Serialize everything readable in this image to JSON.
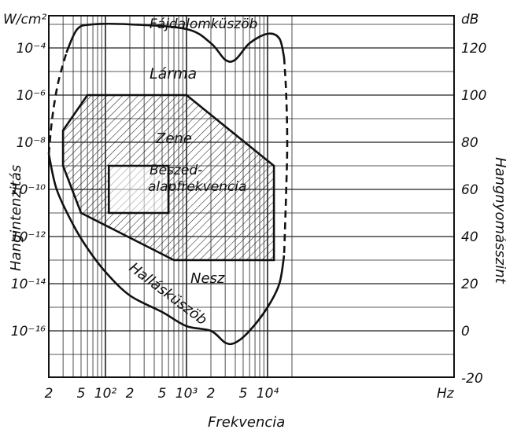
{
  "figure": {
    "left_axis_unit": "W/cm²",
    "right_axis_unit": "dB",
    "left_axis_title": "Hangintenzitás",
    "right_axis_title": "Hangnyomásszint",
    "x_axis_title": "Frekvencia",
    "x_unit": "Hz",
    "region_labels": {
      "pain_threshold": "Fájdalomküszöb",
      "noise": "Lárma",
      "music": "Zene",
      "speech_line1": "Beszéd-",
      "speech_line2": "alapfrekvencia",
      "quiet": "Nesz",
      "hearing_threshold": "Hallásküszöb"
    },
    "x_ticks": [
      {
        "label": "2",
        "hz": 20
      },
      {
        "label": "5",
        "hz": 50
      },
      {
        "label": "10²",
        "hz": 100
      },
      {
        "label": "2",
        "hz": 200
      },
      {
        "label": "5",
        "hz": 500
      },
      {
        "label": "10³",
        "hz": 1000
      },
      {
        "label": "2",
        "hz": 2000
      },
      {
        "label": "5",
        "hz": 5000
      },
      {
        "label": "10⁴",
        "hz": 10000
      }
    ],
    "left_ticks": [
      {
        "label": "10⁻⁴",
        "db": 120
      },
      {
        "label": "10⁻⁶",
        "db": 100
      },
      {
        "label": "10⁻⁸",
        "db": 80
      },
      {
        "label": "10⁻¹⁰",
        "db": 60
      },
      {
        "label": "10⁻¹²",
        "db": 40
      },
      {
        "label": "10⁻¹⁴",
        "db": 20
      },
      {
        "label": "10⁻¹⁶",
        "db": 0
      }
    ],
    "right_ticks": [
      {
        "label": "120",
        "db": 120
      },
      {
        "label": "100",
        "db": 100
      },
      {
        "label": "80",
        "db": 80
      },
      {
        "label": "60",
        "db": 60
      },
      {
        "label": "40",
        "db": 40
      },
      {
        "label": "20",
        "db": 20
      },
      {
        "label": "0",
        "db": 0
      },
      {
        "label": "-20",
        "db": -20
      }
    ],
    "curves": {
      "pain_threshold": [
        [
          33,
          118
        ],
        [
          45,
          128
        ],
        [
          70,
          130
        ],
        [
          200,
          130
        ],
        [
          1000,
          128
        ],
        [
          2000,
          122
        ],
        [
          3000,
          115
        ],
        [
          4000,
          115
        ],
        [
          6000,
          122
        ],
        [
          10000,
          126
        ],
        [
          14000,
          124
        ],
        [
          16000,
          116
        ]
      ],
      "hearing_threshold": [
        [
          20,
          75
        ],
        [
          25,
          60
        ],
        [
          40,
          45
        ],
        [
          60,
          35
        ],
        [
          100,
          25
        ],
        [
          200,
          15
        ],
        [
          500,
          8
        ],
        [
          1000,
          2
        ],
        [
          2000,
          0
        ],
        [
          3000,
          -5
        ],
        [
          4000,
          -5
        ],
        [
          6000,
          0
        ],
        [
          10000,
          10
        ],
        [
          14000,
          20
        ],
        [
          16000,
          32
        ]
      ],
      "hearing_low_dashed": [
        [
          20,
          75
        ],
        [
          22,
          90
        ],
        [
          26,
          105
        ],
        [
          33,
          118
        ]
      ],
      "hearing_high_dashed": [
        [
          16000,
          116
        ],
        [
          17000,
          100
        ],
        [
          17500,
          80
        ],
        [
          17000,
          60
        ],
        [
          16000,
          32
        ]
      ]
    },
    "music_area": [
      [
        30,
        85
      ],
      [
        60,
        100
      ],
      [
        1000,
        100
      ],
      [
        12000,
        70
      ],
      [
        12000,
        30
      ],
      [
        700,
        30
      ],
      [
        50,
        50
      ],
      [
        30,
        70
      ]
    ],
    "speech_area": [
      [
        110,
        70
      ],
      [
        600,
        70
      ],
      [
        600,
        50
      ],
      [
        110,
        50
      ]
    ]
  }
}
